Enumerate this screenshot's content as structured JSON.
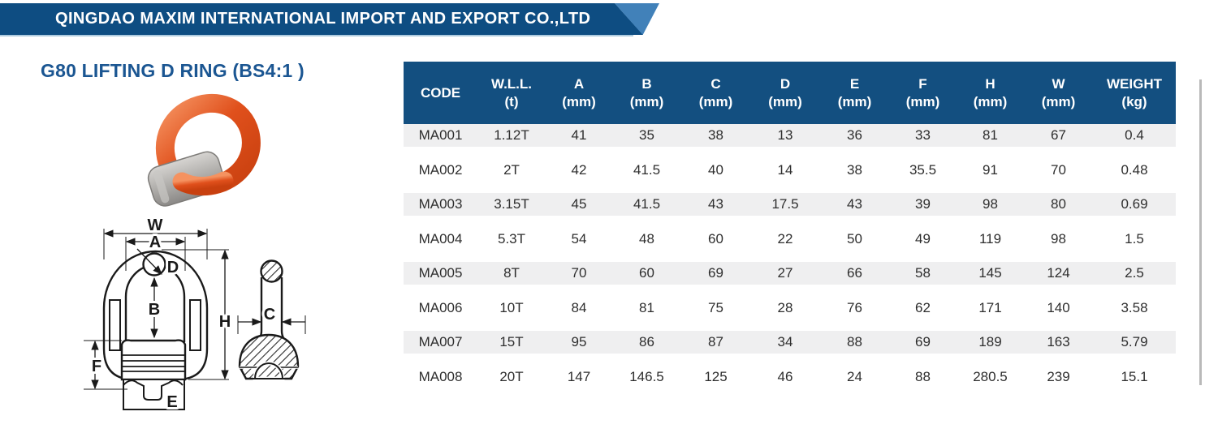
{
  "banner": {
    "company_name": "QINGDAO MAXIM INTERNATIONAL IMPORT AND EXPORT CO.,LTD"
  },
  "page": {
    "title": "G80 LIFTING D RING (BS4:1 )"
  },
  "product_table": {
    "headers": [
      {
        "name": "CODE",
        "unit": ""
      },
      {
        "name": "W.L.L.",
        "unit": "(t)"
      },
      {
        "name": "A",
        "unit": "(mm)"
      },
      {
        "name": "B",
        "unit": "(mm)"
      },
      {
        "name": "C",
        "unit": "(mm)"
      },
      {
        "name": "D",
        "unit": "(mm)"
      },
      {
        "name": "E",
        "unit": "(mm)"
      },
      {
        "name": "F",
        "unit": "(mm)"
      },
      {
        "name": "H",
        "unit": "(mm)"
      },
      {
        "name": "W",
        "unit": "(mm)"
      },
      {
        "name": "WEIGHT",
        "unit": "(kg)"
      }
    ],
    "rows": [
      [
        "MA001",
        "1.12T",
        "41",
        "35",
        "38",
        "13",
        "36",
        "33",
        "81",
        "67",
        "0.4"
      ],
      [
        "MA002",
        "2T",
        "42",
        "41.5",
        "40",
        "14",
        "38",
        "35.5",
        "91",
        "70",
        "0.48"
      ],
      [
        "MA003",
        "3.15T",
        "45",
        "41.5",
        "43",
        "17.5",
        "43",
        "39",
        "98",
        "80",
        "0.69"
      ],
      [
        "MA004",
        "5.3T",
        "54",
        "48",
        "60",
        "22",
        "50",
        "49",
        "119",
        "98",
        "1.5"
      ],
      [
        "MA005",
        "8T",
        "70",
        "60",
        "69",
        "27",
        "66",
        "58",
        "145",
        "124",
        "2.5"
      ],
      [
        "MA006",
        "10T",
        "84",
        "81",
        "75",
        "28",
        "76",
        "62",
        "171",
        "140",
        "3.58"
      ],
      [
        "MA007",
        "15T",
        "95",
        "86",
        "87",
        "34",
        "88",
        "69",
        "189",
        "163",
        "5.79"
      ],
      [
        "MA008",
        "20T",
        "147",
        "146.5",
        "125",
        "46",
        "24",
        "88",
        "280.5",
        "239",
        "15.1"
      ]
    ]
  },
  "diagram": {
    "labels": {
      "w": "W",
      "a": "A",
      "d": "D",
      "b": "B",
      "h": "H",
      "f": "F",
      "e": "E",
      "c": "C"
    }
  },
  "colors": {
    "banner_blue": "#0E4D82",
    "banner_accent_blue": "#4181B9",
    "table_header_blue": "#134F80",
    "row_stripe_gray": "#EFEFF0",
    "title_blue": "#1B5692",
    "ring_orange": "#E0501C"
  }
}
